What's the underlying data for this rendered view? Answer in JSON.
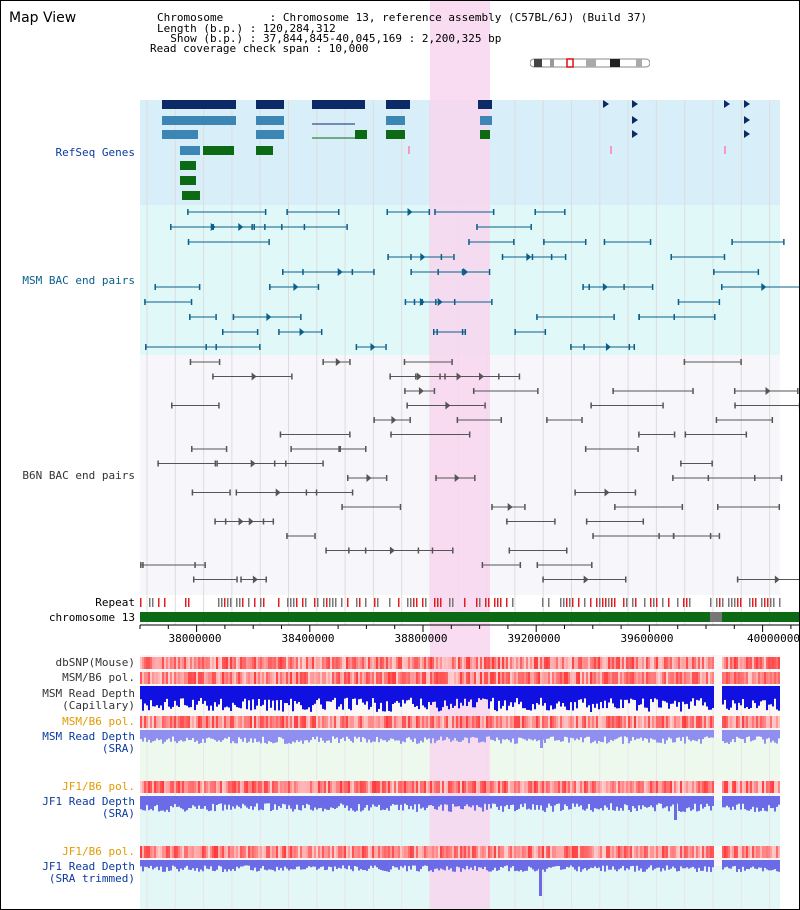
{
  "title": "Map View",
  "info": {
    "chromosome": "Chromosome       : Chromosome 13, reference assembly (C57BL/6J) (Build 37)",
    "length": "Length (b.p.) : 120,284,312",
    "show": "  Show (b.p.) : 37,844,845-40,045,169 : 2,200,325 bp",
    "coverage": "Read coverage check span : 10,000"
  },
  "tracks": {
    "refseq": "RefSeq Genes",
    "msm_bac": "MSM BAC end pairs",
    "b6n_bac": "B6N BAC end pairs",
    "repeat": "Repeat",
    "chromosome": "chromosome 13",
    "dbsnp": "dbSNP(Mouse)",
    "msm_b6_pol": "MSM/B6 pol.",
    "msm_read_depth_cap_1": "MSM Read Depth",
    "msm_read_depth_cap_2": "(Capillary)",
    "msm_b6_pol_2": "MSM/B6 pol.",
    "msm_read_depth_sra_1": "MSM Read Depth",
    "msm_read_depth_sra_2": "(SRA)",
    "jf1_b6_pol": "JF1/B6 pol.",
    "jf1_read_depth_sra_1": "JF1 Read Depth",
    "jf1_read_depth_sra_2": "(SRA)",
    "jf1_b6_pol_2": "JF1/B6 pol.",
    "jf1_read_depth_trim_1": "JF1 Read Depth",
    "jf1_read_depth_trim_2": "(SRA trimmed)"
  },
  "axis": {
    "ticks": [
      "38000000",
      "38400000",
      "38800000",
      "39200000",
      "39600000",
      "40000000"
    ]
  },
  "colors": {
    "refseq_bg": "#d8eef9",
    "msm_bg": "#e1f8f8",
    "label_blue": "#0a3b9e",
    "label_orange": "#e39a00",
    "highlight": "#f8d6ef",
    "chrom_green": "#0b6a13"
  }
}
